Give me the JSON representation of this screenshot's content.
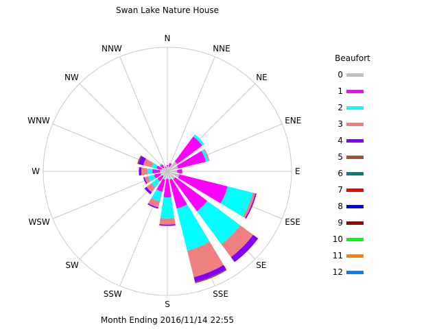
{
  "chart_data": {
    "type": "wind-rose",
    "title": "Swan Lake Nature House",
    "footer": "Month Ending 2016/11/14 22:55",
    "directions": [
      "N",
      "NNE",
      "NE",
      "ENE",
      "E",
      "ESE",
      "SE",
      "SSE",
      "S",
      "SSW",
      "SW",
      "WSW",
      "W",
      "WNW",
      "NW",
      "NNW"
    ],
    "legend_title": "Beaufort",
    "legend_placement": "right",
    "beaufort_levels": [
      "0",
      "1",
      "2",
      "3",
      "4",
      "5",
      "6",
      "7",
      "8",
      "9",
      "10",
      "11",
      "12"
    ],
    "colors": [
      "#c0c0c0",
      "#ff00ff",
      "#00ffff",
      "#f08080",
      "#8000ff",
      "#a0522d",
      "#008080",
      "#ff0000",
      "#0000ff",
      "#a00000",
      "#00ff00",
      "#ff8000",
      "#0080ff"
    ],
    "max_frequency": 1.0,
    "series": [
      {
        "direction": "N",
        "values": [
          0.04,
          0.01,
          0,
          0,
          0,
          0,
          0,
          0,
          0,
          0,
          0,
          0,
          0
        ]
      },
      {
        "direction": "NNE",
        "values": [
          0.04,
          0.03,
          0,
          0,
          0,
          0,
          0,
          0,
          0,
          0,
          0,
          0,
          0
        ]
      },
      {
        "direction": "NE",
        "values": [
          0.1,
          0.25,
          0.02,
          0,
          0,
          0,
          0,
          0,
          0,
          0,
          0,
          0,
          0
        ]
      },
      {
        "direction": "ENE",
        "values": [
          0.09,
          0.23,
          0.02,
          0.01,
          0,
          0,
          0,
          0,
          0,
          0,
          0,
          0,
          0
        ]
      },
      {
        "direction": "E",
        "values": [
          0.08,
          0.04,
          0,
          0,
          0,
          0,
          0,
          0,
          0,
          0,
          0,
          0,
          0
        ]
      },
      {
        "direction": "ESE",
        "values": [
          0.1,
          0.4,
          0.21,
          0.02,
          0.01,
          0,
          0,
          0,
          0,
          0,
          0,
          0,
          0
        ]
      },
      {
        "direction": "SE",
        "values": [
          0.08,
          0.32,
          0.33,
          0.13,
          0.05,
          0,
          0,
          0,
          0,
          0,
          0,
          0,
          0
        ]
      },
      {
        "direction": "SSE",
        "values": [
          0.07,
          0.24,
          0.35,
          0.22,
          0.04,
          0.01,
          0,
          0,
          0,
          0,
          0,
          0,
          0
        ]
      },
      {
        "direction": "S",
        "values": [
          0.06,
          0.15,
          0.17,
          0.05,
          0.01,
          0,
          0,
          0,
          0,
          0,
          0,
          0,
          0
        ]
      },
      {
        "direction": "SSW",
        "values": [
          0.07,
          0.1,
          0.08,
          0.05,
          0.01,
          0,
          0,
          0,
          0,
          0,
          0,
          0,
          0
        ]
      },
      {
        "direction": "SW",
        "values": [
          0.05,
          0.05,
          0.06,
          0.05,
          0.02,
          0,
          0,
          0,
          0,
          0,
          0,
          0,
          0
        ]
      },
      {
        "direction": "WSW",
        "values": [
          0.06,
          0.05,
          0.05,
          0.03,
          0.01,
          0,
          0,
          0,
          0,
          0,
          0,
          0,
          0
        ]
      },
      {
        "direction": "W",
        "values": [
          0.06,
          0.06,
          0.04,
          0.05,
          0.02,
          0,
          0,
          0,
          0,
          0,
          0,
          0,
          0
        ]
      },
      {
        "direction": "WNW",
        "values": [
          0.05,
          0.04,
          0.04,
          0.07,
          0.04,
          0.01,
          0,
          0,
          0,
          0,
          0,
          0,
          0
        ]
      },
      {
        "direction": "NW",
        "values": [
          0.04,
          0.03,
          0.01,
          0,
          0,
          0,
          0,
          0,
          0,
          0,
          0,
          0,
          0
        ]
      },
      {
        "direction": "NNW",
        "values": [
          0.03,
          0.01,
          0,
          0,
          0,
          0,
          0,
          0,
          0,
          0,
          0,
          0,
          0
        ]
      }
    ]
  }
}
